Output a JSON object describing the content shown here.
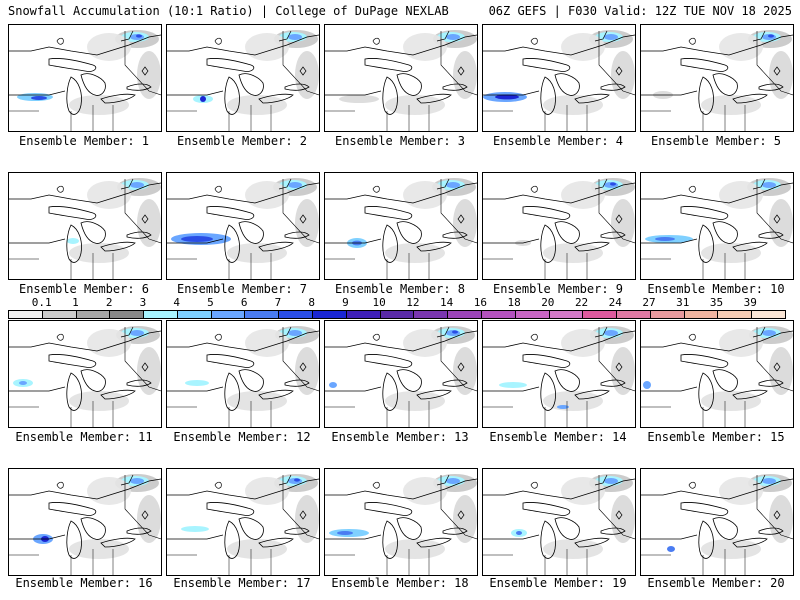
{
  "header": {
    "title": "Snowfall Accumulation (10:1 Ratio) | College of DuPage NEXLAB",
    "run_info": "06Z GEFS | F030 Valid: 12Z TUE NOV 18 2025"
  },
  "colorbar": {
    "labels": [
      "0.1",
      "1",
      "2",
      "3",
      "4",
      "5",
      "6",
      "7",
      "8",
      "9",
      "10",
      "12",
      "14",
      "16",
      "18",
      "20",
      "22",
      "24",
      "27",
      "31",
      "35",
      "39"
    ],
    "colors": [
      "#f2f2f2",
      "#cccccc",
      "#a8a8a8",
      "#888888",
      "#a8f4ff",
      "#7fd0ff",
      "#6aa6ff",
      "#4a7cf2",
      "#2a4ee6",
      "#1a26d4",
      "#3e1fb8",
      "#5a2aa8",
      "#7a36b0",
      "#9a44b8",
      "#b452bf",
      "#c866c4",
      "#d47ac8",
      "#de5a9e",
      "#e07aa4",
      "#e89a9e",
      "#f0b4a0",
      "#f6ccb4",
      "#fbe6d6"
    ]
  },
  "members": [
    {
      "label": "Ensemble Member: 1"
    },
    {
      "label": "Ensemble Member: 2"
    },
    {
      "label": "Ensemble Member: 3"
    },
    {
      "label": "Ensemble Member: 4"
    },
    {
      "label": "Ensemble Member: 5"
    },
    {
      "label": "Ensemble Member: 6"
    },
    {
      "label": "Ensemble Member: 7"
    },
    {
      "label": "Ensemble Member: 8"
    },
    {
      "label": "Ensemble Member: 9"
    },
    {
      "label": "Ensemble Member: 10"
    },
    {
      "label": "Ensemble Member: 11"
    },
    {
      "label": "Ensemble Member: 12"
    },
    {
      "label": "Ensemble Member: 13"
    },
    {
      "label": "Ensemble Member: 14"
    },
    {
      "label": "Ensemble Member: 15"
    },
    {
      "label": "Ensemble Member: 16"
    },
    {
      "label": "Ensemble Member: 17"
    },
    {
      "label": "Ensemble Member: 18"
    },
    {
      "label": "Ensemble Member: 19"
    },
    {
      "label": "Ensemble Member: 20"
    }
  ]
}
